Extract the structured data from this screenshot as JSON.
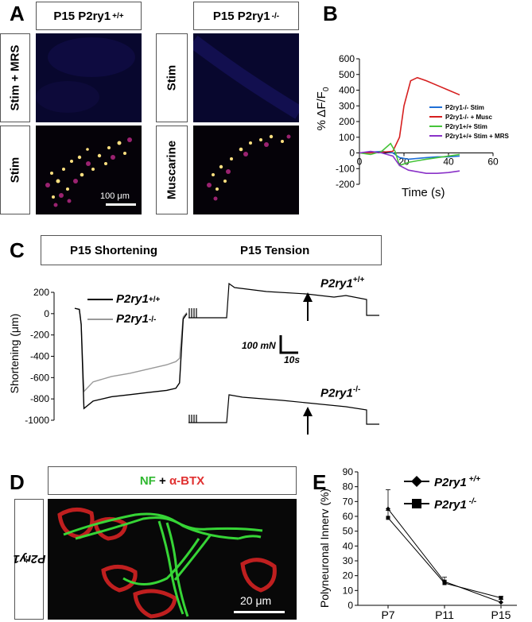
{
  "panelA": {
    "letter": "A",
    "wt_header": "P15 P2ry1",
    "wt_sup": "+/+",
    "ko_header": "P15 P2ry1",
    "ko_sup": "-/-",
    "row1_wt": "Stim + MRS",
    "row2_wt": "Stim",
    "row1_ko": "Stim",
    "row2_ko": "Muscarine",
    "scalebar": "100 μm"
  },
  "panelB": {
    "letter": "B",
    "ylabel": "% ΔF/F",
    "ylabel_sub": "0",
    "xlabel": "Time (s)"
  },
  "panelC": {
    "letter": "C",
    "header_left": "P15 Shortening",
    "header_right": "P15 Tension",
    "ylabel": "Shortening (μm)",
    "legend_wt": "P2ry1",
    "legend_wt_sup": "+/+",
    "legend_ko": "P2ry1",
    "legend_ko_sup": "-/-",
    "trace_wt_label": "P2ry1",
    "trace_wt_sup": "+/+",
    "trace_ko_label": "P2ry1",
    "trace_ko_sup": "-/-",
    "scale_force": "100 mN",
    "scale_time": "10s"
  },
  "panelD": {
    "letter": "D",
    "stain_nf": "NF",
    "stain_plus": " + ",
    "stain_btx": "α-BTX",
    "genotype": "P2ry1",
    "genotype_sup": "-/-",
    "scalebar": "20 μm"
  },
  "panelE": {
    "letter": "E",
    "ylabel": "Polyneuronal Innerv (%)"
  },
  "chart_data": [
    {
      "type": "line",
      "panel": "B",
      "ylabel": "% ΔF/F0",
      "xlabel": "Time (s)",
      "xlim": [
        0,
        60
      ],
      "ylim": [
        -200,
        600
      ],
      "x_ticks": [
        0,
        20,
        40,
        60
      ],
      "y_ticks": [
        -200,
        -100,
        0,
        100,
        200,
        300,
        400,
        500,
        600
      ],
      "legend_position": "right",
      "series": [
        {
          "name": "P2ry1-/- Stim",
          "color": "#1f6fd6",
          "x": [
            0,
            5,
            10,
            15,
            18,
            22,
            26,
            30,
            35,
            40,
            45
          ],
          "y": [
            0,
            5,
            10,
            0,
            -30,
            -40,
            -35,
            -30,
            -25,
            -25,
            -20
          ]
        },
        {
          "name": "P2ry1-/- + Musc",
          "color": "#d61f1f",
          "x": [
            0,
            5,
            10,
            15,
            18,
            20,
            23,
            26,
            30,
            35,
            40,
            45
          ],
          "y": [
            0,
            0,
            5,
            10,
            100,
            300,
            460,
            480,
            460,
            430,
            400,
            370
          ]
        },
        {
          "name": "P2ry1+/+ Stim",
          "color": "#46c43a",
          "x": [
            0,
            5,
            10,
            14,
            16,
            18,
            22,
            26,
            30,
            35,
            40,
            45
          ],
          "y": [
            0,
            -10,
            10,
            60,
            10,
            -80,
            -60,
            -50,
            -40,
            -30,
            -20,
            -10
          ]
        },
        {
          "name": "P2ry1+/+ Stim + MRS",
          "color": "#8a32c8",
          "x": [
            0,
            5,
            10,
            15,
            18,
            22,
            26,
            30,
            35,
            40,
            45
          ],
          "y": [
            0,
            10,
            0,
            -20,
            -80,
            -110,
            -120,
            -130,
            -130,
            -125,
            -115
          ]
        }
      ]
    },
    {
      "type": "line",
      "panel": "C",
      "ylabel": "Shortening (μm)",
      "ylim": [
        -1000,
        200
      ],
      "y_ticks": [
        -1000,
        -800,
        -600,
        -400,
        -200,
        0,
        200
      ],
      "series": [
        {
          "name": "P2ry1+/+",
          "color": "#000000",
          "x": [
            0,
            5,
            7,
            10,
            20,
            40,
            60,
            80,
            100,
            110,
            114,
            118,
            122
          ],
          "y": [
            50,
            40,
            -100,
            -890,
            -820,
            -780,
            -760,
            -740,
            -720,
            -700,
            -650,
            -50,
            0
          ]
        },
        {
          "name": "P2ry1-/-",
          "color": "#999999",
          "x": [
            0,
            5,
            7,
            10,
            20,
            40,
            60,
            80,
            100,
            110,
            114,
            118,
            122
          ],
          "y": [
            50,
            40,
            -100,
            -730,
            -640,
            -590,
            -560,
            -520,
            -480,
            -450,
            -420,
            -30,
            10
          ]
        }
      ]
    },
    {
      "type": "line",
      "panel": "E",
      "ylabel": "Polyneuronal Innerv (%)",
      "categories": [
        "P7",
        "P11",
        "P15"
      ],
      "ylim": [
        0,
        90
      ],
      "y_ticks": [
        0,
        10,
        20,
        30,
        40,
        50,
        60,
        70,
        80,
        90
      ],
      "legend_position": "top-right",
      "series": [
        {
          "name": "P2ry1 +/+",
          "marker": "diamond",
          "values": [
            65,
            16,
            2
          ],
          "error": [
            13,
            3,
            2
          ]
        },
        {
          "name": "P2ry1 -/-",
          "marker": "square",
          "values": [
            59,
            15,
            5
          ],
          "error": [
            5,
            2,
            1
          ]
        }
      ]
    }
  ]
}
